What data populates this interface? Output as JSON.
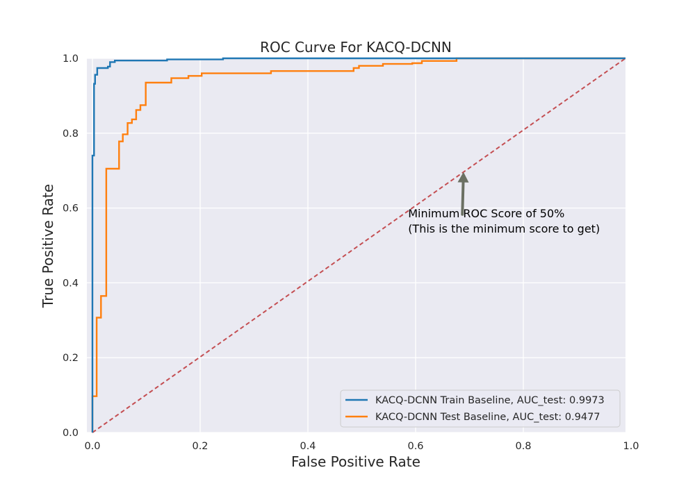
{
  "chart_data": {
    "type": "line",
    "title": "ROC Curve For KACQ-DCNN",
    "xlabel": "False Positive Rate",
    "ylabel": "True Positive Rate",
    "xlim": [
      0,
      1
    ],
    "ylim": [
      0,
      1
    ],
    "xticks": [
      "0.0",
      "0.2",
      "0.4",
      "0.6",
      "0.8",
      "1.0"
    ],
    "yticks": [
      "0.0",
      "0.2",
      "0.4",
      "0.6",
      "0.8",
      "1.0"
    ],
    "grid": true,
    "legend_position": "lower-right",
    "series": [
      {
        "name": "KACQ-DCNN Train Baseline, AUC_test: 0.9973",
        "color": "#1f77b4",
        "step": true,
        "x": [
          0,
          0,
          0.003,
          0.003,
          0.005,
          0.005,
          0.009,
          0.009,
          0.029,
          0.029,
          0.033,
          0.033,
          0.042,
          0.042,
          0.14,
          0.14,
          0.245,
          0.245,
          1.0
        ],
        "y": [
          0,
          0.74,
          0.74,
          0.932,
          0.932,
          0.956,
          0.956,
          0.974,
          0.974,
          0.978,
          0.978,
          0.99,
          0.99,
          0.994,
          0.994,
          0.997,
          0.997,
          1.0,
          1.0
        ]
      },
      {
        "name": "KACQ-DCNN Test Baseline, AUC_test: 0.9477",
        "color": "#ff7f0e",
        "step": true,
        "x": [
          0,
          0,
          0.008,
          0.008,
          0.016,
          0.016,
          0.026,
          0.026,
          0.05,
          0.05,
          0.057,
          0.057,
          0.066,
          0.066,
          0.074,
          0.074,
          0.082,
          0.082,
          0.09,
          0.09,
          0.1,
          0.1,
          0.148,
          0.148,
          0.18,
          0.18,
          0.205,
          0.205,
          0.335,
          0.335,
          0.49,
          0.49,
          0.5,
          0.5,
          0.545,
          0.545,
          0.6,
          0.6,
          0.618,
          0.618,
          0.683,
          0.683,
          1.0
        ],
        "y": [
          0,
          0.097,
          0.097,
          0.307,
          0.307,
          0.365,
          0.365,
          0.705,
          0.705,
          0.778,
          0.778,
          0.797,
          0.797,
          0.827,
          0.827,
          0.837,
          0.837,
          0.862,
          0.862,
          0.875,
          0.875,
          0.935,
          0.935,
          0.947,
          0.947,
          0.953,
          0.953,
          0.96,
          0.96,
          0.966,
          0.966,
          0.974,
          0.974,
          0.98,
          0.98,
          0.985,
          0.985,
          0.987,
          0.987,
          0.993,
          0.993,
          1.0,
          1.0
        ]
      },
      {
        "name": "",
        "color": "#c44e52",
        "dashed": true,
        "x": [
          0,
          1
        ],
        "y": [
          0,
          1
        ]
      }
    ],
    "annotation": {
      "lines": [
        "Minimum ROC Score of 50%",
        "(This is the minimum score to get)"
      ],
      "text_at": [
        0.6,
        0.575
      ],
      "arrow_from": [
        0.78,
        0.57
      ],
      "arrow_to": [
        0.7,
        0.7
      ],
      "arrow_color": "#6b7063"
    },
    "colors": {
      "plot_background": "#eaeaf2",
      "grid": "#ffffff"
    }
  }
}
